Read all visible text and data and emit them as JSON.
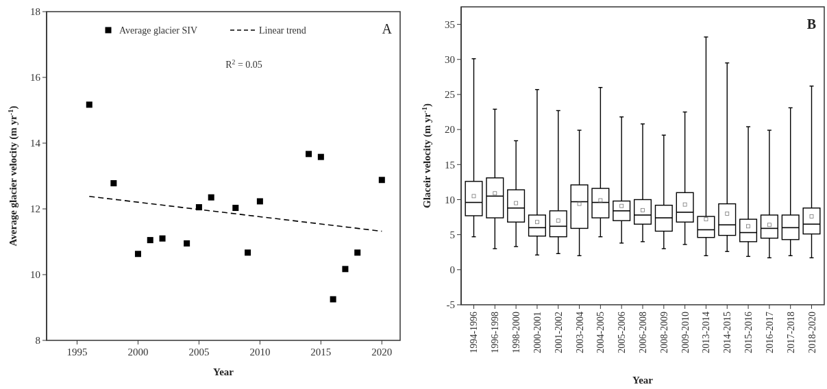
{
  "chart_data": [
    {
      "type": "scatter",
      "title": "A",
      "xlabel": "Year",
      "ylabel": "Average glacier velocity (m yr$^{-1}$)",
      "xlim": [
        1992.5,
        2021.5
      ],
      "xticks": [
        1995,
        2000,
        2005,
        2010,
        2015,
        2020
      ],
      "ylim": [
        8,
        18
      ],
      "yticks": [
        8,
        10,
        12,
        14,
        16,
        18
      ],
      "legend": "top",
      "grid": false,
      "annotations": [
        "R$^{2}$ = 0.05"
      ],
      "series": [
        {
          "name": "Average glacier SIV",
          "type": "scatter",
          "marker": "square",
          "color": "#000000",
          "x": [
            1996,
            1998,
            2000,
            2001,
            2002,
            2004,
            2005,
            2006,
            2008,
            2009,
            2010,
            2014,
            2015,
            2016,
            2017,
            2018,
            2020
          ],
          "values": [
            15.17,
            12.78,
            10.63,
            11.05,
            11.1,
            10.95,
            12.05,
            12.35,
            12.03,
            10.67,
            12.23,
            13.67,
            13.58,
            9.25,
            10.17,
            10.67,
            12.88
          ]
        },
        {
          "name": "Linear trend",
          "type": "line",
          "line_style": "dashed",
          "color": "#000000",
          "x": [
            1996,
            2020
          ],
          "values": [
            12.38,
            11.32
          ]
        }
      ]
    },
    {
      "type": "box",
      "title": "B",
      "xlabel": "Year",
      "ylabel": "Glaceir velocity (m yr$^{-1}$)",
      "ylim": [
        -5,
        37.5
      ],
      "yticks": [
        -5,
        0,
        5,
        10,
        15,
        20,
        25,
        30,
        35
      ],
      "grid": false,
      "color": "#000000",
      "categories": [
        "1994-1996",
        "1996-1998",
        "1998-2000",
        "2000-2001",
        "2001-2002",
        "2003-2004",
        "2004-2005",
        "2005-2006",
        "2006-2008",
        "2008-2009",
        "2009-2010",
        "2013-2014",
        "2014-2015",
        "2015-2016",
        "2016-2017",
        "2017-2018",
        "2018-2020"
      ],
      "boxes": [
        {
          "low": 4.7,
          "q1": 7.7,
          "median": 9.6,
          "q3": 12.6,
          "high": 30.1,
          "mean": 10.5
        },
        {
          "low": 3.0,
          "q1": 7.4,
          "median": 10.5,
          "q3": 13.1,
          "high": 22.9,
          "mean": 10.9
        },
        {
          "low": 3.3,
          "q1": 6.8,
          "median": 8.8,
          "q3": 11.4,
          "high": 18.4,
          "mean": 9.5
        },
        {
          "low": 2.1,
          "q1": 4.8,
          "median": 6.0,
          "q3": 7.8,
          "high": 25.7,
          "mean": 6.8
        },
        {
          "low": 2.3,
          "q1": 4.7,
          "median": 6.2,
          "q3": 8.4,
          "high": 22.7,
          "mean": 7.0
        },
        {
          "low": 2.0,
          "q1": 5.9,
          "median": 9.7,
          "q3": 12.1,
          "high": 19.9,
          "mean": 9.4
        },
        {
          "low": 4.7,
          "q1": 7.4,
          "median": 9.6,
          "q3": 11.6,
          "high": 26.0,
          "mean": 9.9
        },
        {
          "low": 3.8,
          "q1": 7.0,
          "median": 8.4,
          "q3": 9.8,
          "high": 21.8,
          "mean": 9.1
        },
        {
          "low": 4.0,
          "q1": 6.5,
          "median": 7.8,
          "q3": 10.0,
          "high": 20.8,
          "mean": 8.5
        },
        {
          "low": 3.0,
          "q1": 5.5,
          "median": 7.4,
          "q3": 9.2,
          "high": 19.2
        },
        {
          "low": 3.6,
          "q1": 6.8,
          "median": 8.2,
          "q3": 11.0,
          "high": 22.5,
          "mean": 9.3
        },
        {
          "low": 2.0,
          "q1": 4.6,
          "median": 5.7,
          "q3": 7.6,
          "high": 33.2,
          "mean": 7.2
        },
        {
          "low": 2.6,
          "q1": 4.9,
          "median": 6.4,
          "q3": 9.4,
          "high": 29.5,
          "mean": 8.0
        },
        {
          "low": 1.9,
          "q1": 4.0,
          "median": 5.3,
          "q3": 7.2,
          "high": 20.4,
          "mean": 6.2
        },
        {
          "low": 1.7,
          "q1": 4.5,
          "median": 5.9,
          "q3": 7.8,
          "high": 19.9,
          "mean": 6.4
        },
        {
          "low": 2.0,
          "q1": 4.3,
          "median": 6.0,
          "q3": 7.8,
          "high": 23.1
        },
        {
          "low": 1.7,
          "q1": 5.1,
          "median": 6.5,
          "q3": 8.8,
          "high": 26.2,
          "mean": 7.6
        }
      ]
    }
  ]
}
